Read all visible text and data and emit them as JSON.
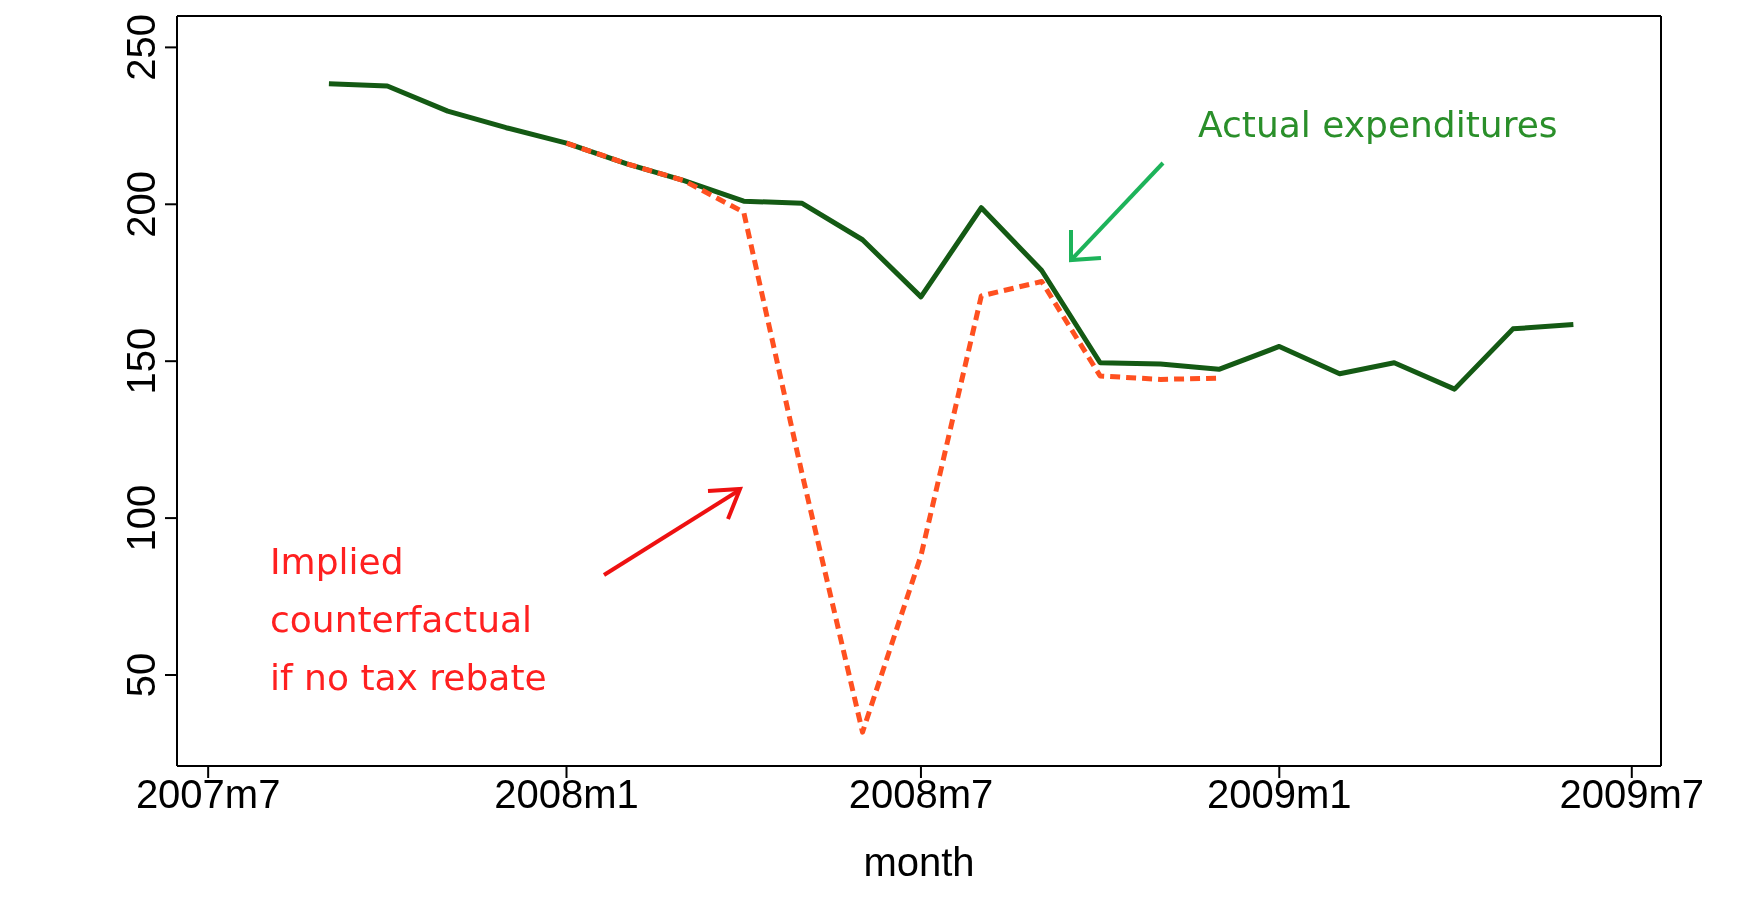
{
  "chart_data": {
    "type": "line",
    "xlabel": "month",
    "xlim": [
      "2007-06-15",
      "2009-07-16"
    ],
    "xticks": [
      {
        "value": "2007-07",
        "label": "2007m7"
      },
      {
        "value": "2008-01",
        "label": "2008m1"
      },
      {
        "value": "2008-07",
        "label": "2008m7"
      },
      {
        "value": "2009-01",
        "label": "2009m1"
      },
      {
        "value": "2009-07",
        "label": "2009m7"
      }
    ],
    "ylim": [
      21,
      260
    ],
    "yticks": [
      50,
      100,
      150,
      200,
      250
    ],
    "marker": "none",
    "series": [
      {
        "color": "#145a14",
        "line_style": "solid",
        "x": [
          "2007-09",
          "2007-10",
          "2007-11",
          "2007-12",
          "2008-01",
          "2008-02",
          "2008-03",
          "2008-04",
          "2008-05",
          "2008-06",
          "2008-07",
          "2008-08",
          "2008-09",
          "2008-10",
          "2008-11",
          "2008-12",
          "2009-01",
          "2009-02",
          "2009-03",
          "2009-04",
          "2009-05",
          "2009-06"
        ],
        "values": [
          238.4,
          237.7,
          229.7,
          224.4,
          219.5,
          212.9,
          207.6,
          201,
          200.3,
          188.7,
          170.5,
          198.9,
          178.9,
          149.5,
          149.1,
          147.4,
          154.7,
          146,
          149.5,
          141.1,
          160.3,
          161.7
        ]
      },
      {
        "color": "#ff5020",
        "line_style": "dashed",
        "x": [
          "2008-01",
          "2008-02",
          "2008-03",
          "2008-04",
          "2008-05",
          "2008-06",
          "2008-07",
          "2008-08",
          "2008-09",
          "2008-10",
          "2008-11",
          "2008-12"
        ],
        "values": [
          219.5,
          212.9,
          207.6,
          197.5,
          114,
          31.8,
          88,
          170.8,
          175.4,
          145.3,
          144.2,
          144.6
        ]
      }
    ],
    "annotations": [
      "Actual expenditures",
      "Implied\ncounterfactual\nif no tax rebate"
    ]
  }
}
